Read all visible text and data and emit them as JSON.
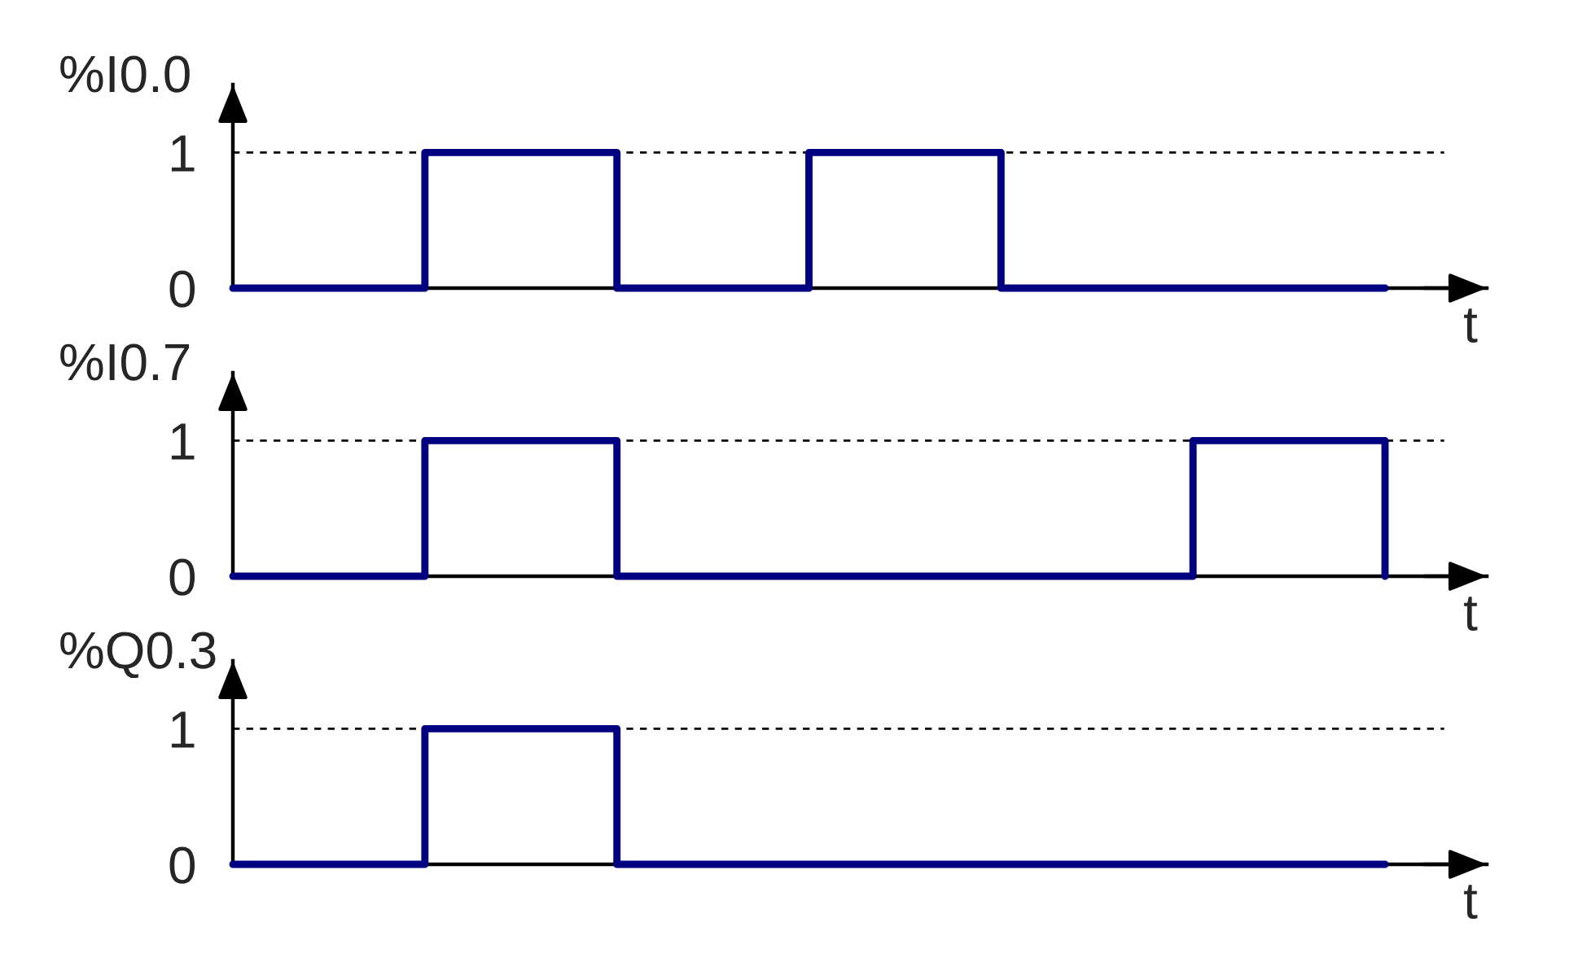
{
  "chart_data": [
    {
      "type": "step",
      "ylabel": "%I0.0",
      "xlabel": "t",
      "categories": [
        null,
        null,
        null,
        null,
        null,
        null,
        null
      ],
      "series": [
        {
          "color": "#000080",
          "values": [
            0,
            1,
            0,
            1,
            0,
            0,
            0
          ]
        }
      ],
      "ylim": [
        0,
        1.5
      ],
      "yticks": [
        0,
        1
      ],
      "tick_labels": "y",
      "line_style": "solid",
      "ref_lines": [
        {
          "axis": "y",
          "value": 1,
          "color": "#000000",
          "line_style": "dashed"
        }
      ]
    },
    {
      "type": "step",
      "ylabel": "%I0.7",
      "xlabel": "t",
      "categories": [
        null,
        null,
        null,
        null,
        null,
        null,
        null
      ],
      "series": [
        {
          "color": "#000080",
          "values": [
            0,
            1,
            0,
            0,
            0,
            1,
            0
          ]
        }
      ],
      "ylim": [
        0,
        1.5
      ],
      "yticks": [
        0,
        1
      ],
      "tick_labels": "y",
      "line_style": "solid",
      "ref_lines": [
        {
          "axis": "y",
          "value": 1,
          "color": "#000000",
          "line_style": "dashed"
        }
      ]
    },
    {
      "type": "step",
      "ylabel": "%Q0.3",
      "xlabel": "t",
      "categories": [
        null,
        null,
        null,
        null,
        null,
        null,
        null
      ],
      "series": [
        {
          "color": "#000080",
          "values": [
            0,
            1,
            0,
            0,
            0,
            0,
            0
          ]
        }
      ],
      "ylim": [
        0,
        1.5
      ],
      "yticks": [
        0,
        1
      ],
      "tick_labels": "y",
      "line_style": "solid",
      "ref_lines": [
        {
          "axis": "y",
          "value": 1,
          "color": "#000000",
          "line_style": "dashed"
        }
      ]
    }
  ]
}
